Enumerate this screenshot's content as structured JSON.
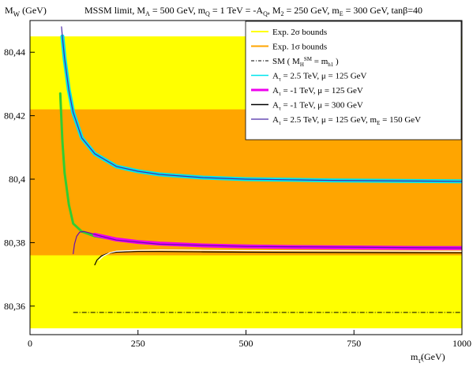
{
  "chart_data": {
    "type": "line",
    "title": "MSSM limit, M_A = 500 GeV, m_Q = 1 TeV = -A_Q, M_2 = 250 GeV, m_E = 300 GeV, tanβ=40",
    "ylabel": "M_W (GeV)",
    "xlabel": "m_τ̃ (GeV)",
    "xlim": [
      0,
      1000
    ],
    "ylim": [
      80.351,
      80.45
    ],
    "xticks": [
      "0",
      "250",
      "500",
      "750",
      "1000"
    ],
    "yticks": [
      "80,36",
      "80,38",
      "80,4",
      "80,42",
      "80,44"
    ],
    "bands": [
      {
        "name": "Exp. 2σ bounds",
        "color": "#ffff00",
        "y0": 80.353,
        "y1": 80.445
      },
      {
        "name": "Exp. 1σ bounds",
        "color": "#ffa500",
        "y0": 80.376,
        "y1": 80.422
      }
    ],
    "sm_line": {
      "name": "SM ( M_H^SM = m_h1 )",
      "y": 80.358,
      "x0": 100,
      "x1": 1000,
      "color": "#000000"
    },
    "series": [
      {
        "name": "A_τ = 2.5 TeV, μ = 125 GeV",
        "color": "#00e5ee",
        "width": 5,
        "x": [
          75,
          80,
          90,
          100,
          120,
          150,
          200,
          250,
          300,
          400,
          500,
          600,
          700,
          800,
          900,
          1000
        ],
        "y": [
          80.445,
          80.438,
          80.428,
          80.421,
          80.413,
          80.408,
          80.404,
          80.4025,
          80.4015,
          80.4005,
          80.4,
          80.3998,
          80.3996,
          80.3995,
          80.3994,
          80.3993
        ]
      },
      {
        "name": "A_τ = 2.5 TeV, μ = 125 GeV, m_E = 150 GeV",
        "color": "#4b2aa8",
        "width": 1.2,
        "x": [
          73,
          75,
          80,
          90,
          100,
          120,
          150,
          200,
          250,
          300,
          400,
          500,
          600,
          700,
          800,
          900,
          1000
        ],
        "y": [
          80.448,
          80.445,
          80.438,
          80.428,
          80.421,
          80.413,
          80.408,
          80.404,
          80.4025,
          80.4015,
          80.4005,
          80.4,
          80.3998,
          80.3996,
          80.3995,
          80.3994,
          80.3993
        ]
      },
      {
        "name": "green band",
        "color": "#32cd32",
        "width": 3,
        "x": [
          70,
          75,
          80,
          90,
          100,
          120,
          150,
          200,
          250,
          300,
          400,
          500,
          600,
          800,
          1000
        ],
        "y": [
          80.427,
          80.412,
          80.402,
          80.392,
          80.386,
          80.3835,
          80.382,
          80.381,
          80.3803,
          80.3798,
          80.3792,
          80.379,
          80.3788,
          80.3786,
          80.3785
        ]
      },
      {
        "name": "A_τ = -1 TeV, μ = 125 GeV",
        "color": "#ee00ee",
        "width": 5,
        "x": [
          150,
          200,
          250,
          300,
          400,
          500,
          600,
          700,
          800,
          900,
          1000
        ],
        "y": [
          80.3825,
          80.381,
          80.3802,
          80.3797,
          80.3791,
          80.3788,
          80.3786,
          80.3785,
          80.3784,
          80.3783,
          80.3783
        ]
      },
      {
        "name": "purple curve",
        "color": "#6a0dad",
        "width": 1.2,
        "x": [
          100,
          103,
          108,
          115,
          125,
          140,
          160,
          200,
          300,
          500,
          1000
        ],
        "y": [
          80.3765,
          80.3795,
          80.382,
          80.3833,
          80.3835,
          80.383,
          80.3822,
          80.3808,
          80.3795,
          80.3788,
          80.3783
        ]
      },
      {
        "name": "A_τ = -1 TeV, μ = 300 GeV",
        "color": "#000000",
        "width": 1.2,
        "x": [
          150,
          155,
          165,
          180,
          200,
          250,
          300,
          400,
          500,
          700,
          1000
        ],
        "y": [
          80.373,
          80.3745,
          80.3758,
          80.3766,
          80.377,
          80.3772,
          80.3772,
          80.3771,
          80.377,
          80.3769,
          80.3768
        ]
      },
      {
        "name": "white curve",
        "color": "#ffffff",
        "width": 1.3,
        "x": [
          160,
          170,
          185,
          200,
          250,
          300,
          400,
          500,
          700,
          1000
        ],
        "y": [
          80.3745,
          80.3758,
          80.3768,
          80.3773,
          80.3776,
          80.3777,
          80.3776,
          80.3775,
          80.3774,
          80.3773
        ]
      }
    ],
    "legend": {
      "position": "top-right",
      "entries": [
        {
          "label": "Exp. 2σ bounds",
          "color": "#ffff00",
          "style": "solid",
          "width": 2
        },
        {
          "label": "Exp. 1σ bounds",
          "color": "#ffa500",
          "style": "solid",
          "width": 2
        },
        {
          "label": "SM ( M_H^SM = m_h1 )",
          "color": "#000000",
          "style": "dashdot",
          "width": 1
        },
        {
          "label": "A_τ = 2.5 TeV, μ = 125 GeV",
          "color": "#00e5ee",
          "style": "solid",
          "width": 1.5
        },
        {
          "label": "A_τ = -1 TeV, μ = 125 GeV",
          "color": "#ee00ee",
          "style": "solid",
          "width": 3
        },
        {
          "label": "A_τ = -1 TeV, μ = 300 GeV",
          "color": "#000000",
          "style": "solid",
          "width": 1.5
        },
        {
          "label": "A_τ = 2.5 TeV, μ = 125 GeV, m_E = 150 GeV",
          "color": "#4b2aa8",
          "style": "solid",
          "width": 1.2
        }
      ]
    }
  }
}
